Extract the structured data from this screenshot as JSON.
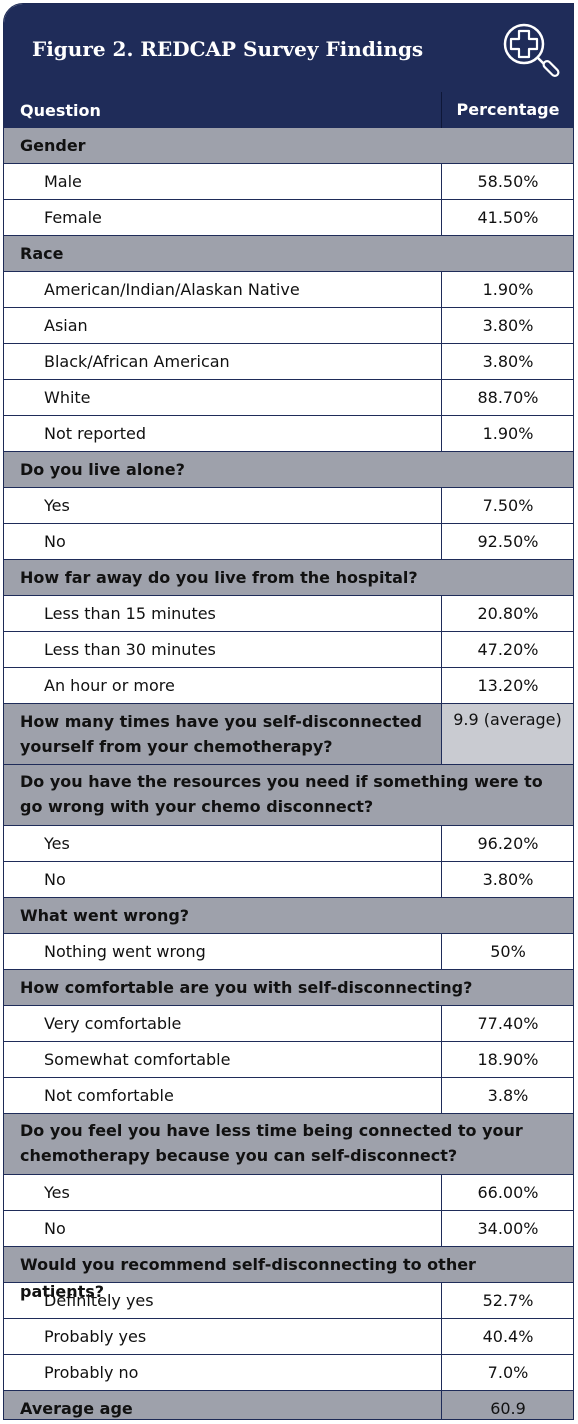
{
  "figure_title": "Figure 2. REDCAP Survey Findings",
  "header": {
    "question": "Question",
    "percentage": "Percentage"
  },
  "colors": {
    "navy": "#1f2c59",
    "section_gray": "#9ea1ab",
    "white": "#ffffff"
  },
  "logo_icon": "magnifier-with-medical-cross-icon",
  "sections": [
    {
      "title": "Gender",
      "items": [
        {
          "label": "Male",
          "value": "58.50%"
        },
        {
          "label": "Female",
          "value": "41.50%"
        }
      ]
    },
    {
      "title": "Race",
      "items": [
        {
          "label": "American/Indian/Alaskan Native",
          "value": "1.90%"
        },
        {
          "label": "Asian",
          "value": "3.80%"
        },
        {
          "label": "Black/African American",
          "value": "3.80%"
        },
        {
          "label": "White",
          "value": "88.70%"
        },
        {
          "label": "Not reported",
          "value": "1.90%"
        }
      ]
    },
    {
      "title": "Do you live alone?",
      "items": [
        {
          "label": "Yes",
          "value": "7.50%"
        },
        {
          "label": "No",
          "value": "92.50%"
        }
      ]
    },
    {
      "title": "How far away do you live from the hospital?",
      "items": [
        {
          "label": "Less than 15 minutes",
          "value": "20.80%"
        },
        {
          "label": "Less than 30 minutes",
          "value": "47.20%"
        },
        {
          "label": "An hour or more",
          "value": "13.20%"
        }
      ]
    },
    {
      "title": "How many times have you self-disconnected yourself from your chemotherapy?",
      "value": "9.9 (average)",
      "items": []
    },
    {
      "title": "Do you have the resources you need if something were to go wrong with your chemo disconnect?",
      "items": [
        {
          "label": "Yes",
          "value": "96.20%"
        },
        {
          "label": "No",
          "value": "3.80%"
        }
      ]
    },
    {
      "title": "What went wrong?",
      "items": [
        {
          "label": "Nothing went wrong",
          "value": "50%"
        }
      ]
    },
    {
      "title": "How comfortable are you with self-disconnecting?",
      "items": [
        {
          "label": "Very comfortable",
          "value": "77.40%"
        },
        {
          "label": "Somewhat comfortable",
          "value": "18.90%"
        },
        {
          "label": "Not comfortable",
          "value": "3.8%"
        }
      ]
    },
    {
      "title": "Do you feel you have less time being connected to your chemotherapy because you can self-disconnect?",
      "items": [
        {
          "label": "Yes",
          "value": "66.00%"
        },
        {
          "label": "No",
          "value": "34.00%"
        }
      ]
    },
    {
      "title": "Would you recommend self-disconnecting to other patients?",
      "items": [
        {
          "label": "Definitely yes",
          "value": "52.7%"
        },
        {
          "label": "Probably yes",
          "value": "40.4%"
        },
        {
          "label": "Probably no",
          "value": "7.0%"
        }
      ]
    }
  ],
  "average_age": {
    "label": "Average age",
    "value": "60.9"
  }
}
